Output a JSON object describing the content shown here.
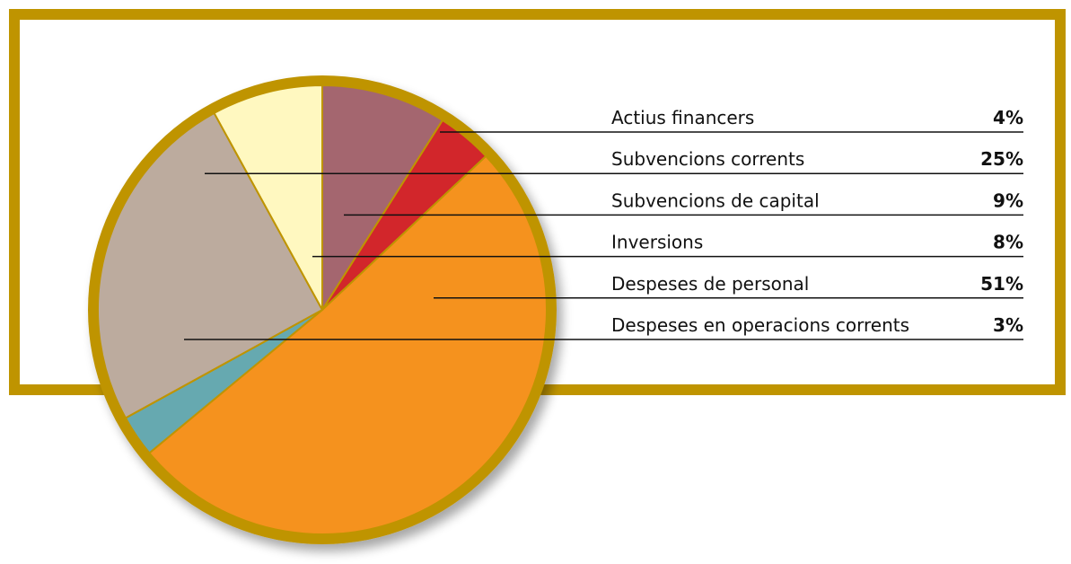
{
  "chart_data": {
    "type": "pie",
    "categories": [
      "Actius financers",
      "Subvencions corrents",
      "Subvencions de capital",
      "Inversions",
      "Despeses de personal",
      "Despeses en operacions corrents"
    ],
    "values": [
      4,
      25,
      9,
      8,
      51,
      3
    ],
    "value_labels": [
      "4%",
      "25%",
      "9%",
      "8%",
      "51%",
      "3%"
    ],
    "colors": [
      "#d2262b",
      "#bcab9e",
      "#a4666f",
      "#fff8c0",
      "#f5921e",
      "#66a9b0"
    ]
  }
}
